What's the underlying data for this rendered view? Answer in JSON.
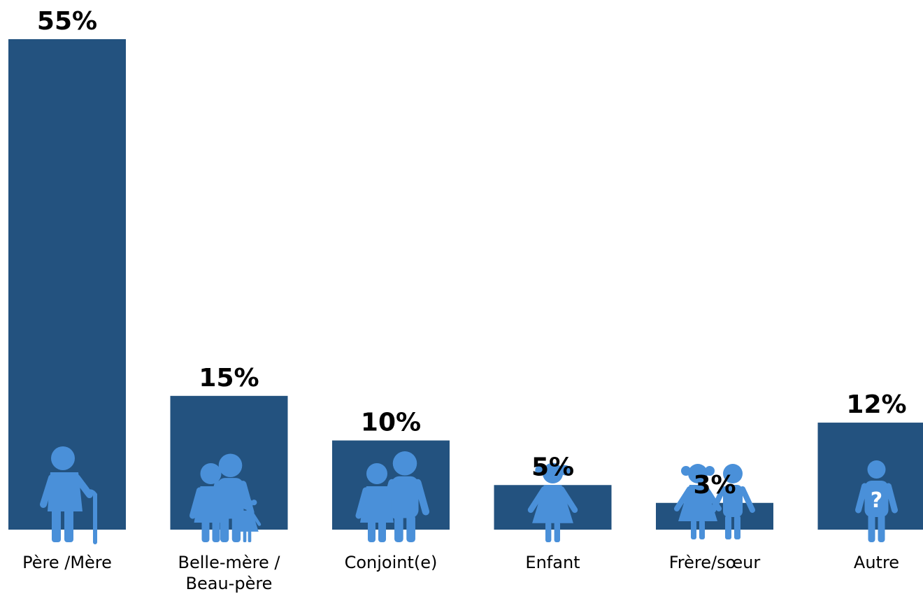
{
  "chart_data": {
    "type": "bar",
    "categories": [
      "Père /Mère",
      "Belle-mère / Beau-père",
      "Conjoint(e)",
      "Enfant",
      "Frère/sœur",
      "Autre"
    ],
    "category_lines": [
      [
        "Père /Mère"
      ],
      [
        "Belle-mère /",
        "Beau-père"
      ],
      [
        "Conjoint(e)"
      ],
      [
        "Enfant"
      ],
      [
        "Frère/sœur"
      ],
      [
        "Autre"
      ]
    ],
    "values": [
      55,
      15,
      10,
      5,
      3,
      12
    ],
    "value_labels": [
      "55%",
      "15%",
      "10%",
      "5%",
      "3%",
      "12%"
    ],
    "ylim": [
      0,
      55
    ],
    "grid": false,
    "legend": "none",
    "icons": [
      "elderly-person-with-cane-icon",
      "family-couple-with-child-icon",
      "couple-icon",
      "girl-child-icon",
      "siblings-icon",
      "question-mark-person-icon"
    ]
  },
  "colors": {
    "bar": "#23527F",
    "icon": "#4A90D9",
    "text": "#000000",
    "background": "#FFFFFF"
  }
}
